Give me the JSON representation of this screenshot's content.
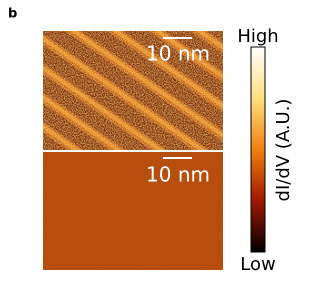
{
  "panel_label": "b",
  "images": [
    {
      "scale_bar": "10 nm"
    },
    {
      "scale_bar": "10 nm"
    }
  ],
  "colorbar": {
    "label": "dI/dV (A.U.)",
    "high": "High",
    "low": "Low"
  }
}
